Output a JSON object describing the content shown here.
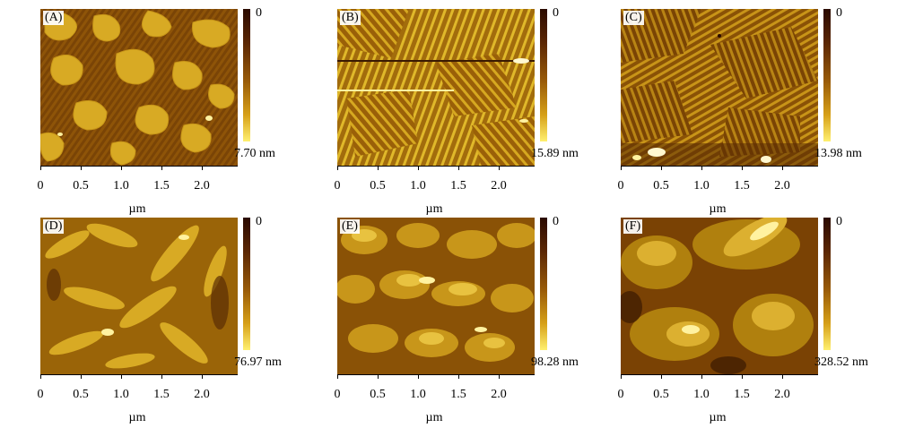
{
  "panels": [
    {
      "label": "(A)",
      "scale_top": "0",
      "scale_bottom": "7.70 nm",
      "xlabel": "µm",
      "ticks": [
        "0",
        "0.5",
        "1.0",
        "1.5",
        "2.0"
      ]
    },
    {
      "label": "(B)",
      "scale_top": "0",
      "scale_bottom": "15.89 nm",
      "xlabel": "µm",
      "ticks": [
        "0",
        "0.5",
        "1.0",
        "1.5",
        "2.0"
      ]
    },
    {
      "label": "(C)",
      "scale_top": "0",
      "scale_bottom": "13.98 nm",
      "xlabel": "µm",
      "ticks": [
        "0",
        "0.5",
        "1.0",
        "1.5",
        "2.0"
      ]
    },
    {
      "label": "(D)",
      "scale_top": "0",
      "scale_bottom": "76.97 nm",
      "xlabel": "µm",
      "ticks": [
        "0",
        "0.5",
        "1.0",
        "1.5",
        "2.0"
      ]
    },
    {
      "label": "(E)",
      "scale_top": "0",
      "scale_bottom": "98.28 nm",
      "xlabel": "µm",
      "ticks": [
        "0",
        "0.5",
        "1.0",
        "1.5",
        "2.0"
      ]
    },
    {
      "label": "(F)",
      "scale_top": "0",
      "scale_bottom": "328.52 nm",
      "xlabel": "µm",
      "ticks": [
        "0",
        "0.5",
        "1.0",
        "1.5",
        "2.0"
      ]
    }
  ],
  "colors": {
    "dark": "#5a2c04",
    "mid": "#a26c0c",
    "light": "#e0b82a",
    "bright": "#fff2a0"
  }
}
